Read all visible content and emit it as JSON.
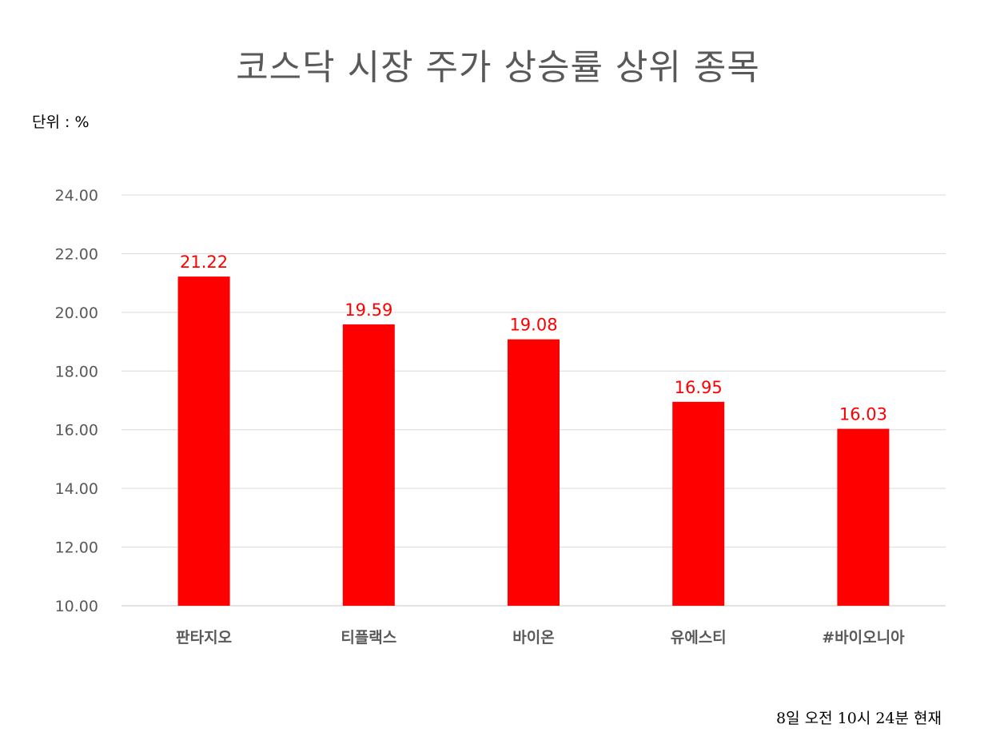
{
  "chart_data": {
    "type": "bar",
    "title": "코스닥 시장 주가 상승률 상위 종목",
    "unit_label": "단위 : %",
    "categories": [
      "판타지오",
      "티플랙스",
      "바이온",
      "유에스티",
      "#바이오니아"
    ],
    "values": [
      21.22,
      19.59,
      19.08,
      16.95,
      16.03
    ],
    "value_labels": [
      "21.22",
      "19.59",
      "19.08",
      "16.95",
      "16.03"
    ],
    "ylim": [
      10,
      24
    ],
    "yticks": [
      "10.00",
      "12.00",
      "14.00",
      "16.00",
      "18.00",
      "20.00",
      "22.00",
      "24.00"
    ],
    "xlabel": "",
    "ylabel": "",
    "grid": true,
    "bar_color": "#ff0000",
    "data_label_color": "#ff0000",
    "grid_color": "#d9d9d9"
  },
  "footnote": "8일  오전 10시 24분 현재"
}
